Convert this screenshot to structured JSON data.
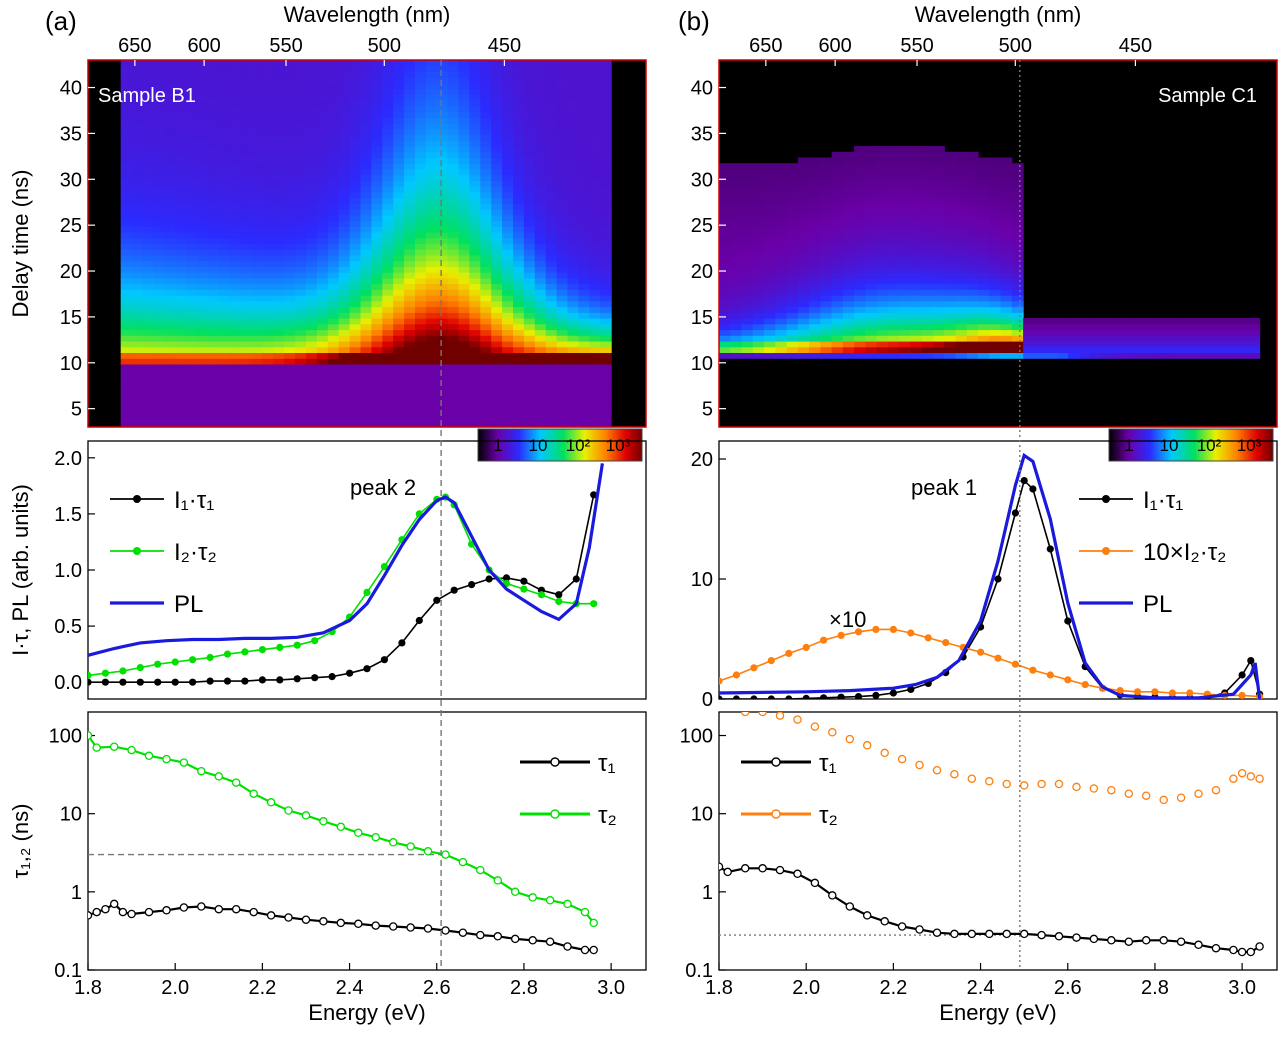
{
  "chart_data": {
    "panels": [
      {
        "panel_label": "(a)",
        "sample_label": "Sample B1",
        "map": {
          "type": "heatmap",
          "top_axis_title": "Wavelength (nm)",
          "top_ticks_nm": [
            650,
            600,
            550,
            500,
            450
          ],
          "ylabel": "Delay time (ns)",
          "ylim": [
            3,
            43
          ],
          "yticks": [
            5,
            10,
            15,
            20,
            25,
            30,
            35,
            40
          ],
          "xlim_eV": [
            1.8,
            3.08
          ],
          "excitation_delay_ns": 10,
          "data_range_eV": [
            1.8,
            3.0
          ],
          "dark_range_eV": [
            1.8,
            1.885
          ],
          "colorbar_ticks": [
            "1",
            "10",
            "10²",
            "10³"
          ],
          "peak_energy_eV": 2.61
        },
        "spectrum": {
          "type": "line",
          "ylabel": "I·τ, PL (arb. units)",
          "ylim": [
            -0.15,
            2.15
          ],
          "yticks": [
            "0.0",
            "0.5",
            "1.0",
            "1.5",
            "2.0"
          ],
          "annotation": "peak 2",
          "series": [
            {
              "name": "I₁·τ₁",
              "color": "#000000",
              "x": [
                1.8,
                1.84,
                1.88,
                1.92,
                1.96,
                2.0,
                2.04,
                2.08,
                2.12,
                2.16,
                2.2,
                2.24,
                2.28,
                2.32,
                2.36,
                2.4,
                2.44,
                2.48,
                2.52,
                2.56,
                2.6,
                2.64,
                2.68,
                2.72,
                2.76,
                2.8,
                2.84,
                2.88,
                2.92,
                2.96
              ],
              "y": [
                0.0,
                0.0,
                0.0,
                0.0,
                0.0,
                0.0,
                0.0,
                0.01,
                0.01,
                0.01,
                0.02,
                0.02,
                0.03,
                0.04,
                0.05,
                0.08,
                0.12,
                0.2,
                0.35,
                0.55,
                0.73,
                0.82,
                0.87,
                0.92,
                0.93,
                0.9,
                0.82,
                0.78,
                0.92,
                1.67
              ]
            },
            {
              "name": "I₂·τ₂",
              "color": "#00e000",
              "x": [
                1.8,
                1.84,
                1.88,
                1.92,
                1.96,
                2.0,
                2.04,
                2.08,
                2.12,
                2.16,
                2.2,
                2.24,
                2.28,
                2.32,
                2.36,
                2.4,
                2.44,
                2.48,
                2.52,
                2.56,
                2.6,
                2.62,
                2.64,
                2.68,
                2.72,
                2.76,
                2.8,
                2.84,
                2.88,
                2.92,
                2.96
              ],
              "y": [
                0.06,
                0.08,
                0.1,
                0.13,
                0.16,
                0.18,
                0.2,
                0.22,
                0.25,
                0.27,
                0.29,
                0.31,
                0.33,
                0.37,
                0.45,
                0.58,
                0.8,
                1.03,
                1.27,
                1.5,
                1.63,
                1.65,
                1.58,
                1.23,
                1.0,
                0.88,
                0.83,
                0.78,
                0.72,
                0.7,
                0.7
              ]
            },
            {
              "name": "PL",
              "color": "#1a1adc",
              "x": [
                1.8,
                1.86,
                1.92,
                1.98,
                2.04,
                2.1,
                2.16,
                2.22,
                2.28,
                2.34,
                2.4,
                2.44,
                2.48,
                2.52,
                2.56,
                2.6,
                2.62,
                2.64,
                2.68,
                2.72,
                2.76,
                2.8,
                2.84,
                2.88,
                2.92,
                2.95,
                2.98
              ],
              "y": [
                0.24,
                0.3,
                0.35,
                0.37,
                0.38,
                0.38,
                0.39,
                0.39,
                0.4,
                0.44,
                0.55,
                0.7,
                0.95,
                1.22,
                1.45,
                1.62,
                1.65,
                1.6,
                1.3,
                1.0,
                0.83,
                0.73,
                0.63,
                0.56,
                0.7,
                1.2,
                1.95
              ]
            }
          ]
        },
        "lifetime": {
          "type": "line",
          "ylabel": "τ₁,₂ (ns)",
          "yscale": "log",
          "ylim": [
            0.1,
            200
          ],
          "yticks": [
            "0.1",
            "1",
            "10",
            "100"
          ],
          "xlabel": "Energy (eV)",
          "xticks": [
            "1.8",
            "2.0",
            "2.2",
            "2.4",
            "2.6",
            "2.8",
            "3.0"
          ],
          "ref_lifetime_ns": 3.0,
          "series": [
            {
              "name": "τ₁",
              "color": "#000000",
              "x": [
                1.8,
                1.82,
                1.84,
                1.86,
                1.88,
                1.9,
                1.94,
                1.98,
                2.02,
                2.06,
                2.1,
                2.14,
                2.18,
                2.22,
                2.26,
                2.3,
                2.34,
                2.38,
                2.42,
                2.46,
                2.5,
                2.54,
                2.58,
                2.62,
                2.66,
                2.7,
                2.74,
                2.78,
                2.82,
                2.86,
                2.9,
                2.94,
                2.96
              ],
              "y": [
                0.5,
                0.55,
                0.6,
                0.7,
                0.55,
                0.52,
                0.55,
                0.58,
                0.63,
                0.65,
                0.6,
                0.6,
                0.55,
                0.5,
                0.47,
                0.44,
                0.42,
                0.4,
                0.39,
                0.37,
                0.36,
                0.35,
                0.34,
                0.32,
                0.3,
                0.28,
                0.27,
                0.25,
                0.24,
                0.23,
                0.2,
                0.18,
                0.18
              ]
            },
            {
              "name": "τ₂",
              "color": "#00e000",
              "x": [
                1.8,
                1.82,
                1.86,
                1.9,
                1.94,
                1.98,
                2.02,
                2.06,
                2.1,
                2.14,
                2.18,
                2.22,
                2.26,
                2.3,
                2.34,
                2.38,
                2.42,
                2.46,
                2.5,
                2.54,
                2.58,
                2.62,
                2.66,
                2.7,
                2.74,
                2.78,
                2.82,
                2.86,
                2.9,
                2.94,
                2.96
              ],
              "y": [
                100,
                70,
                72,
                65,
                55,
                50,
                45,
                35,
                30,
                25,
                18,
                14,
                11,
                9.5,
                8,
                6.8,
                5.7,
                5,
                4.3,
                3.8,
                3.3,
                3.0,
                2.4,
                1.9,
                1.4,
                1.0,
                0.85,
                0.78,
                0.7,
                0.55,
                0.4
              ]
            }
          ]
        }
      },
      {
        "panel_label": "(b)",
        "sample_label": "Sample C1",
        "map": {
          "type": "heatmap",
          "top_axis_title": "Wavelength (nm)",
          "top_ticks_nm": [
            650,
            600,
            550,
            500,
            450
          ],
          "ylabel": "",
          "ylim": [
            3,
            43
          ],
          "yticks": [
            5,
            10,
            15,
            20,
            25,
            30,
            35,
            40
          ],
          "xlim_eV": [
            1.8,
            3.08
          ],
          "excitation_delay_ns": 11,
          "data_range_eV": [
            1.8,
            3.04
          ],
          "dark_range_eV": [
            2.5,
            3.04
          ],
          "colorbar_ticks": [
            "1",
            "10",
            "10²",
            "10³"
          ],
          "peak_energy_eV": 2.49
        },
        "spectrum": {
          "type": "line",
          "ylabel": "",
          "ylim": [
            0,
            21.5
          ],
          "yticks": [
            "0",
            "10",
            "20"
          ],
          "annotation": "peak 1",
          "annotation2": "×10",
          "series": [
            {
              "name": "I₁·τ₁",
              "color": "#000000",
              "x": [
                1.8,
                1.84,
                1.88,
                1.92,
                1.96,
                2.0,
                2.04,
                2.08,
                2.12,
                2.16,
                2.2,
                2.24,
                2.28,
                2.32,
                2.36,
                2.4,
                2.44,
                2.48,
                2.5,
                2.52,
                2.56,
                2.6,
                2.64,
                2.68,
                2.72,
                2.76,
                2.8,
                2.84,
                2.88,
                2.92,
                2.96,
                3.0,
                3.02,
                3.04
              ],
              "y": [
                0,
                0,
                0,
                0,
                0,
                0.05,
                0.1,
                0.15,
                0.2,
                0.3,
                0.5,
                0.8,
                1.3,
                2.2,
                3.5,
                6.0,
                10.0,
                15.5,
                18.2,
                17.5,
                12.5,
                6.5,
                2.7,
                0.9,
                0.35,
                0.2,
                0.15,
                0.1,
                0.1,
                0.15,
                0.5,
                2.0,
                3.2,
                0.4
              ]
            },
            {
              "name": "10×I₂·τ₂",
              "color": "#ff7f0e",
              "x": [
                1.8,
                1.84,
                1.88,
                1.92,
                1.96,
                2.0,
                2.04,
                2.08,
                2.12,
                2.16,
                2.2,
                2.24,
                2.28,
                2.32,
                2.36,
                2.4,
                2.44,
                2.48,
                2.52,
                2.56,
                2.6,
                2.64,
                2.68,
                2.72,
                2.76,
                2.8,
                2.84,
                2.88,
                2.92,
                2.96,
                3.0,
                3.04
              ],
              "y": [
                1.5,
                2.0,
                2.6,
                3.2,
                3.8,
                4.3,
                4.9,
                5.3,
                5.6,
                5.8,
                5.8,
                5.5,
                5.1,
                4.7,
                4.3,
                3.9,
                3.4,
                2.9,
                2.4,
                2.0,
                1.6,
                1.2,
                0.9,
                0.7,
                0.6,
                0.6,
                0.5,
                0.5,
                0.4,
                0.3,
                0.3,
                0.2
              ]
            },
            {
              "name": "PL",
              "color": "#1a1adc",
              "x": [
                1.8,
                1.9,
                2.0,
                2.1,
                2.2,
                2.25,
                2.3,
                2.35,
                2.4,
                2.44,
                2.48,
                2.5,
                2.52,
                2.56,
                2.6,
                2.64,
                2.68,
                2.72,
                2.8,
                2.9,
                2.98,
                3.02,
                3.03,
                3.04
              ],
              "y": [
                0.5,
                0.55,
                0.6,
                0.7,
                0.9,
                1.2,
                1.8,
                3.2,
                6.5,
                11.5,
                17.8,
                20.3,
                19.8,
                15.0,
                8.0,
                3.0,
                1.0,
                0.3,
                0.1,
                0.1,
                0.4,
                2.0,
                3.0,
                0.0
              ]
            }
          ]
        },
        "lifetime": {
          "type": "line",
          "ylabel": "",
          "yscale": "log",
          "ylim": [
            0.1,
            200
          ],
          "yticks": [
            "0.1",
            "1",
            "10",
            "100"
          ],
          "xlabel": "Energy (eV)",
          "xticks": [
            "1.8",
            "2.0",
            "2.2",
            "2.4",
            "2.6",
            "2.8",
            "3.0"
          ],
          "ref_lifetime_ns": 0.28,
          "series": [
            {
              "name": "τ₁",
              "color": "#000000",
              "x": [
                1.8,
                1.82,
                1.86,
                1.9,
                1.94,
                1.98,
                2.02,
                2.06,
                2.1,
                2.14,
                2.18,
                2.22,
                2.26,
                2.3,
                2.34,
                2.38,
                2.42,
                2.46,
                2.5,
                2.54,
                2.58,
                2.62,
                2.66,
                2.7,
                2.74,
                2.78,
                2.82,
                2.86,
                2.9,
                2.94,
                2.98,
                3.0,
                3.02,
                3.04
              ],
              "y": [
                2.1,
                1.8,
                2.0,
                2.0,
                1.9,
                1.7,
                1.3,
                0.9,
                0.65,
                0.5,
                0.42,
                0.36,
                0.33,
                0.3,
                0.29,
                0.29,
                0.29,
                0.29,
                0.29,
                0.28,
                0.27,
                0.26,
                0.25,
                0.24,
                0.23,
                0.24,
                0.24,
                0.23,
                0.21,
                0.19,
                0.18,
                0.17,
                0.17,
                0.2
              ]
            },
            {
              "name": "τ₂",
              "color": "#ff7f0e",
              "x": [
                1.86,
                1.9,
                1.94,
                1.98,
                2.02,
                2.06,
                2.1,
                2.14,
                2.18,
                2.22,
                2.26,
                2.3,
                2.34,
                2.38,
                2.42,
                2.46,
                2.5,
                2.54,
                2.58,
                2.62,
                2.66,
                2.7,
                2.74,
                2.78,
                2.82,
                2.86,
                2.9,
                2.94,
                2.98,
                3.0,
                3.02,
                3.04
              ],
              "y": [
                200,
                200,
                180,
                160,
                130,
                110,
                90,
                75,
                60,
                50,
                42,
                36,
                32,
                28,
                26,
                24,
                23,
                24,
                24,
                22,
                21,
                20,
                18,
                17,
                15,
                16,
                18,
                20,
                28,
                33,
                30,
                28
              ]
            }
          ]
        }
      }
    ]
  }
}
